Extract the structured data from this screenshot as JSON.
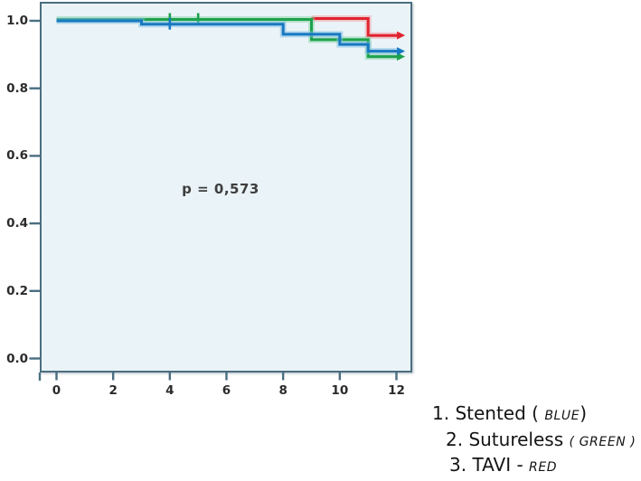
{
  "chart_data": {
    "type": "line",
    "subtype": "kaplan-meier-step",
    "title": "",
    "xlabel": "",
    "ylabel": "",
    "annotation": "p = 0,573",
    "grid": false,
    "plot_background": "#eaf3f7",
    "axis_color": "#4a6e80",
    "x_axis": {
      "tick_labels": [
        "0",
        "2",
        "4",
        "6",
        "8",
        "10",
        "12"
      ],
      "tick_values": [
        0,
        2,
        4,
        6,
        8,
        10,
        12
      ],
      "range": [
        0,
        12.6
      ]
    },
    "y_axis": {
      "tick_labels": [
        "1.0",
        "0.8",
        "0.6",
        "0.4",
        "0.2",
        "0.0"
      ],
      "tick_values": [
        1.0,
        0.8,
        0.6,
        0.4,
        0.2,
        0.0
      ],
      "range": [
        0,
        1.05
      ]
    },
    "legend_position": "outside-bottom-right",
    "series": [
      {
        "name": "Stented",
        "color_name": "BLUE",
        "color": "#1878c2",
        "glow_color": "#7cbde4",
        "steps": [
          [
            0,
            1.0
          ],
          [
            3,
            0.99
          ],
          [
            8,
            0.96
          ],
          [
            10,
            0.93
          ],
          [
            11,
            0.91
          ],
          [
            12.05,
            0.91
          ]
        ],
        "censor_marks_x": [
          4
        ],
        "end_arrow": true
      },
      {
        "name": "Sutureless",
        "color_name": "GREEN",
        "color": "#1da24c",
        "glow_color": "#83d3a4",
        "steps": [
          [
            0,
            1.0
          ],
          [
            9,
            0.94
          ],
          [
            11,
            0.89
          ],
          [
            12.05,
            0.89
          ]
        ],
        "censor_marks_x": [
          4,
          5
        ],
        "end_arrow": true
      },
      {
        "name": "TAVI",
        "color_name": "RED",
        "color": "#e1232f",
        "glow_color": "#f0999f",
        "steps": [
          [
            9,
            1.0
          ],
          [
            11,
            0.95
          ],
          [
            12.05,
            0.95
          ]
        ],
        "censor_marks_x": [],
        "end_arrow": true
      }
    ]
  },
  "legend": {
    "items": [
      {
        "segments": [
          {
            "t": "1. Stented ( ",
            "s": "main"
          },
          {
            "t": "BLUE",
            "s": "qual"
          },
          {
            "t": ")",
            "s": "main"
          }
        ]
      },
      {
        "segments": [
          {
            "t": "2. Sutureless ",
            "s": "main"
          },
          {
            "t": "( GREEN )",
            "s": "qual"
          }
        ]
      },
      {
        "segments": [
          {
            "t": "3. TAVI  - ",
            "s": "main"
          },
          {
            "t": "RED",
            "s": "qual"
          }
        ]
      }
    ]
  }
}
